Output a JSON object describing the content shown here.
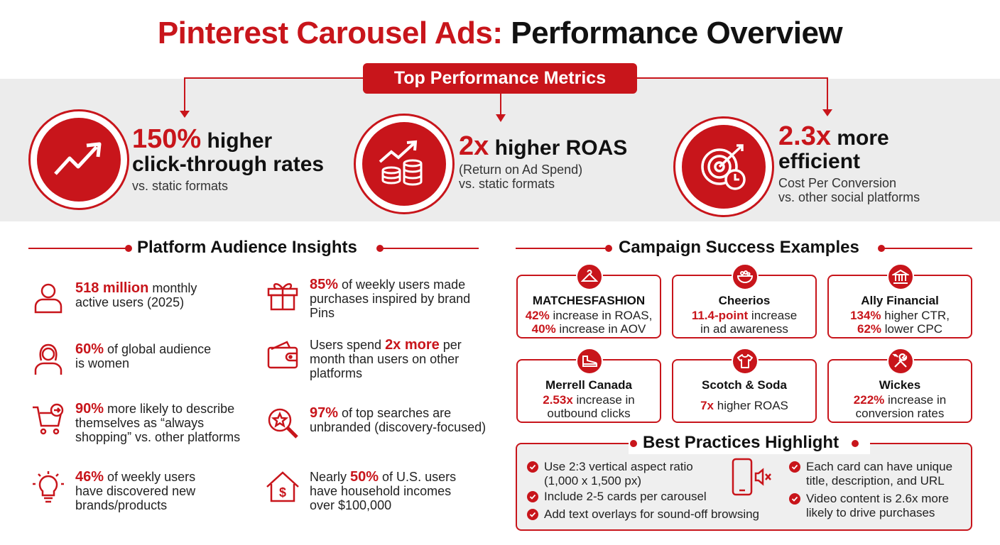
{
  "title": {
    "part1": "Pinterest Carousel Ads:",
    "part2": "Performance Overview"
  },
  "metrics_header": "Top Performance Metrics",
  "metrics": [
    {
      "icon": "trend-up-arrow-icon",
      "value": "150%",
      "headline_rest": "higher",
      "headline_line2": "click-through rates",
      "sub1": "vs. static formats",
      "sub2": ""
    },
    {
      "icon": "coins-growth-icon",
      "value": "2x",
      "headline_rest": "higher ROAS",
      "headline_line2": "",
      "sub1": "(Return on Ad Spend)",
      "sub2": "vs. static formats"
    },
    {
      "icon": "target-clock-icon",
      "value": "2.3x",
      "headline_rest": "more",
      "headline_line2": "efficient",
      "sub1": "Cost Per Conversion",
      "sub2": "vs. other social platforms"
    }
  ],
  "audience": {
    "header": "Platform Audience Insights",
    "items": [
      {
        "icon": "user-icon",
        "pre": "",
        "hl": "518 million",
        "post": " monthly active users (2025)"
      },
      {
        "icon": "woman-icon",
        "pre": "",
        "hl": "60%",
        "post": " of global audience is women"
      },
      {
        "icon": "shopping-cart-icon",
        "pre": "",
        "hl": "90%",
        "post": " more likely to describe themselves as “always shopping” vs. other platforms"
      },
      {
        "icon": "lightbulb-icon",
        "pre": "",
        "hl": "46%",
        "post": " of weekly users have discovered new brands/products"
      },
      {
        "icon": "gift-icon",
        "pre": "",
        "hl": "85%",
        "post": " of weekly users made purchases inspired by brand Pins"
      },
      {
        "icon": "wallet-icon",
        "pre": "Users spend ",
        "hl": "2x more",
        "post": " per month than users on other platforms"
      },
      {
        "icon": "search-star-icon",
        "pre": "",
        "hl": "97%",
        "post": " of top searches are unbranded (discovery-focused)"
      },
      {
        "icon": "house-dollar-icon",
        "pre": "Nearly ",
        "hl": "50%",
        "post": " of U.S. users have household incomes over $100,000"
      }
    ]
  },
  "campaigns": {
    "header": "Campaign Success Examples",
    "items": [
      {
        "icon": "hanger-icon",
        "name": "MATCHESFASHION",
        "l1_hl": "42%",
        "l1": " increase in ROAS,",
        "l2_hl": "40%",
        "l2": " increase in AOV"
      },
      {
        "icon": "cereal-bowl-icon",
        "name": "Cheerios",
        "l1_hl": "11.4-point",
        "l1": " increase",
        "l2_hl": "",
        "l2": "in ad awareness"
      },
      {
        "icon": "bank-icon",
        "name": "Ally Financial",
        "l1_hl": "134%",
        "l1": " higher CTR,",
        "l2_hl": "62%",
        "l2": " lower CPC"
      },
      {
        "icon": "shoe-icon",
        "name": "Merrell Canada",
        "l1_hl": "2.53x",
        "l1": " increase in",
        "l2_hl": "",
        "l2": "outbound clicks"
      },
      {
        "icon": "tshirt-icon",
        "name": "Scotch & Soda",
        "l1_hl": "7x",
        "l1": " higher ROAS",
        "l2_hl": "",
        "l2": ""
      },
      {
        "icon": "tools-icon",
        "name": "Wickes",
        "l1_hl": "222%",
        "l1": " increase in",
        "l2_hl": "",
        "l2": "conversion rates"
      }
    ]
  },
  "best_practices": {
    "header": "Best Practices Highlight",
    "left": [
      "Use 2:3 vertical aspect ratio",
      "(1,000 x 1,500 px)",
      "Include 2-5 cards per carousel",
      "Add text overlays for sound-off browsing"
    ],
    "right": [
      "Each card can have unique",
      "title, description, and URL",
      "Video content is 2.6x more",
      "likely to drive purchases"
    ],
    "center_icon": "phone-muted-icon"
  },
  "colors": {
    "accent": "#c8151b",
    "band": "#ececec",
    "text": "#222222"
  }
}
